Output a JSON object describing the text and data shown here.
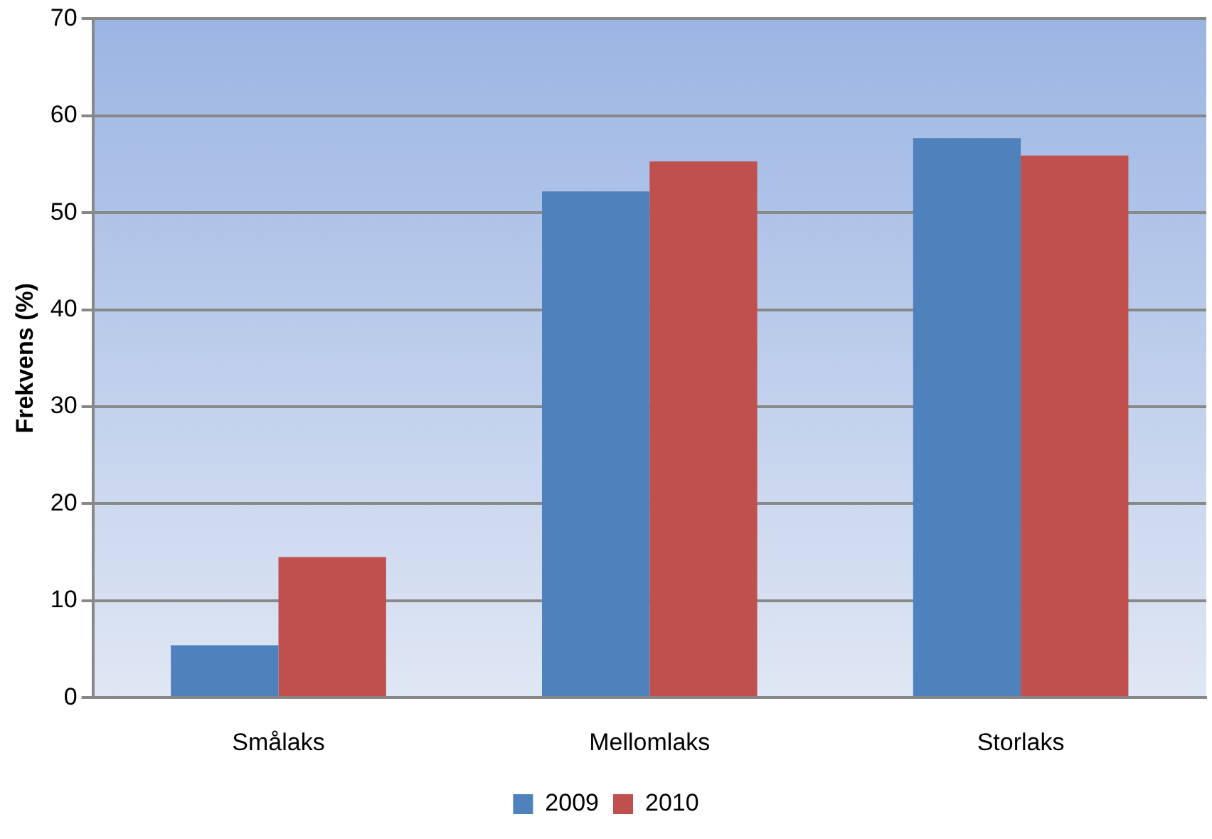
{
  "chart_data": {
    "type": "bar",
    "ylabel": "Frekvens (%)",
    "categories": [
      "Smålaks",
      "Mellomlaks",
      "Storlaks"
    ],
    "series": [
      {
        "name": "2009",
        "color": "#4f81bd",
        "values": [
          5.4,
          52.2,
          57.7
        ]
      },
      {
        "name": "2010",
        "color": "#c0504d",
        "values": [
          14.5,
          55.3,
          55.9
        ]
      }
    ],
    "ylim": [
      0,
      70
    ],
    "yticks": [
      0,
      10,
      20,
      30,
      40,
      50,
      60,
      70
    ],
    "grid": "y",
    "legend": "bottom"
  }
}
